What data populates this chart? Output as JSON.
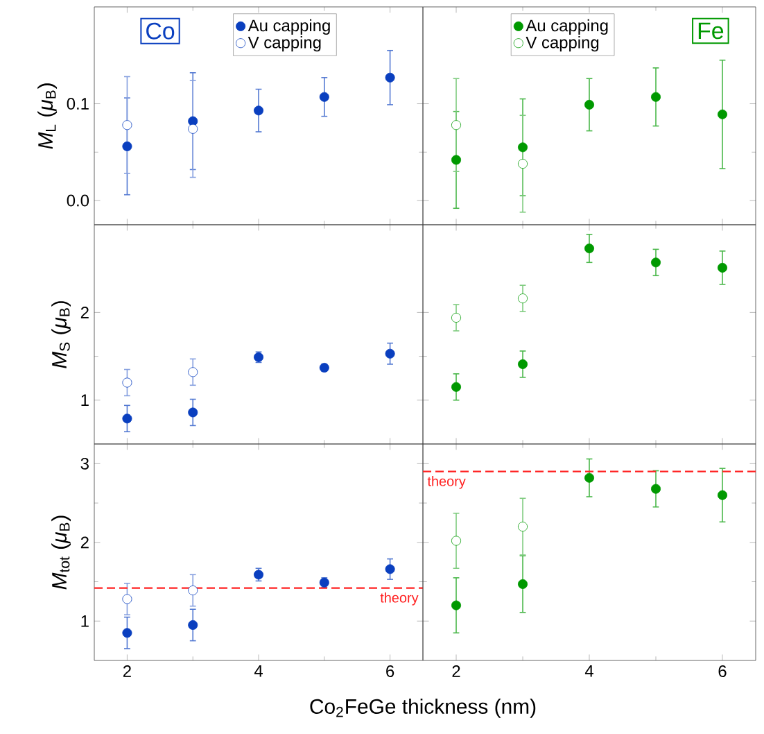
{
  "chart_data": [
    {
      "type": "scatter",
      "ylabel": "*M*$_{L}$ (*μ*$_{B}$)",
      "annotations": [
        "Co"
      ],
      "xlim": [
        1.5,
        6.5
      ],
      "xticks": [
        2,
        4,
        6
      ],
      "ylim": [
        -0.025,
        0.2
      ],
      "yticks": [
        {
          "value": 0,
          "label": "0.0"
        },
        {
          "value": 0.1,
          "label": "0.1"
        }
      ],
      "tick_labels": "y",
      "legend": "top",
      "marker": "circle",
      "series": [
        {
          "name": "Au capping",
          "color": "#0a3fbf",
          "x": [
            2,
            3,
            4,
            5,
            6
          ],
          "values": [
            0.056,
            0.082,
            0.093,
            0.107,
            0.127
          ],
          "errors": [
            0.05,
            0.05,
            0.022,
            0.02,
            0.028
          ]
        },
        {
          "name": "V capping",
          "color": "#0a3fbf",
          "x": [
            2,
            3
          ],
          "values": [
            0.078,
            0.074
          ],
          "errors": [
            0.05,
            0.05
          ]
        }
      ]
    },
    {
      "type": "scatter",
      "annotations": [
        "Fe"
      ],
      "xlim": [
        1.5,
        6.5
      ],
      "xticks": [
        2,
        4,
        6
      ],
      "ylim": [
        -0.025,
        0.2
      ],
      "yticks": [
        0,
        0.1
      ],
      "tick_labels": false,
      "legend": "top",
      "marker": "circle",
      "series": [
        {
          "name": "Au capping",
          "color": "#009900",
          "x": [
            2,
            3,
            4,
            5,
            6
          ],
          "values": [
            0.042,
            0.055,
            0.099,
            0.107,
            0.089
          ],
          "errors": [
            0.05,
            0.05,
            0.027,
            0.03,
            0.056
          ]
        },
        {
          "name": "V capping",
          "color": "#009900",
          "x": [
            2,
            3
          ],
          "values": [
            0.078,
            0.038
          ],
          "errors": [
            0.048,
            0.05
          ]
        }
      ]
    },
    {
      "type": "scatter",
      "ylabel": "*M*$_{S}$ (*μ*$_{B}$)",
      "xlim": [
        1.5,
        6.5
      ],
      "xticks": [
        2,
        4,
        6
      ],
      "ylim": [
        0.5,
        3.0
      ],
      "yticks": [
        1,
        2
      ],
      "tick_labels": "y",
      "marker": "circle",
      "series": [
        {
          "color": "#0a3fbf",
          "x": [
            2,
            3,
            4,
            5,
            6
          ],
          "values": [
            0.79,
            0.86,
            1.49,
            1.37,
            1.53
          ],
          "errors": [
            0.15,
            0.15,
            0.06,
            0.04,
            0.12
          ]
        },
        {
          "color": "#0a3fbf",
          "x": [
            2,
            3
          ],
          "values": [
            1.2,
            1.32
          ],
          "errors": [
            0.15,
            0.15
          ]
        }
      ]
    },
    {
      "type": "scatter",
      "xlim": [
        1.5,
        6.5
      ],
      "xticks": [
        2,
        4,
        6
      ],
      "ylim": [
        0.5,
        3.0
      ],
      "yticks": [
        1,
        2
      ],
      "tick_labels": false,
      "marker": "circle",
      "series": [
        {
          "color": "#009900",
          "x": [
            2,
            3,
            4,
            5,
            6
          ],
          "values": [
            1.15,
            1.41,
            2.73,
            2.57,
            2.51
          ],
          "errors": [
            0.15,
            0.15,
            0.16,
            0.15,
            0.19
          ]
        },
        {
          "color": "#009900",
          "x": [
            2,
            3
          ],
          "values": [
            1.94,
            2.16
          ],
          "errors": [
            0.15,
            0.15
          ]
        }
      ]
    },
    {
      "type": "scatter",
      "ylabel": "*M*$_{tot}$ (*μ*$_{B}$)",
      "xlabel": "Co$_{2}$FeGe thickness (nm)",
      "xlim": [
        1.5,
        6.5
      ],
      "xticks": [
        2,
        4,
        6
      ],
      "ylim": [
        0.5,
        3.25
      ],
      "yticks": [
        1,
        2,
        3
      ],
      "marker": "circle",
      "ref_lines": [
        {
          "axis": "y",
          "value": 1.42,
          "label": "theory",
          "color": "#ff2020",
          "line_style": "dashed"
        }
      ],
      "series": [
        {
          "color": "#0a3fbf",
          "x": [
            2,
            3,
            4,
            5,
            6
          ],
          "values": [
            0.85,
            0.95,
            1.59,
            1.49,
            1.66
          ],
          "errors": [
            0.2,
            0.2,
            0.08,
            0.06,
            0.13
          ]
        },
        {
          "color": "#0a3fbf",
          "x": [
            2,
            3
          ],
          "values": [
            1.28,
            1.39
          ],
          "errors": [
            0.2,
            0.2
          ]
        }
      ]
    },
    {
      "type": "scatter",
      "xlim": [
        1.5,
        6.5
      ],
      "xticks": [
        2,
        4,
        6
      ],
      "ylim": [
        0.5,
        3.25
      ],
      "yticks": [
        1,
        2,
        3
      ],
      "tick_labels": "x",
      "marker": "circle",
      "ref_lines": [
        {
          "axis": "y",
          "value": 2.9,
          "label": "theory",
          "color": "#ff2020",
          "line_style": "dashed"
        }
      ],
      "series": [
        {
          "color": "#009900",
          "x": [
            2,
            3,
            4,
            5,
            6
          ],
          "values": [
            1.2,
            1.47,
            2.82,
            2.68,
            2.6
          ],
          "errors": [
            0.35,
            0.36,
            0.24,
            0.23,
            0.34
          ]
        },
        {
          "color": "#009900",
          "x": [
            2,
            3
          ],
          "values": [
            2.02,
            2.2
          ],
          "errors": [
            0.35,
            0.36
          ]
        }
      ]
    }
  ]
}
